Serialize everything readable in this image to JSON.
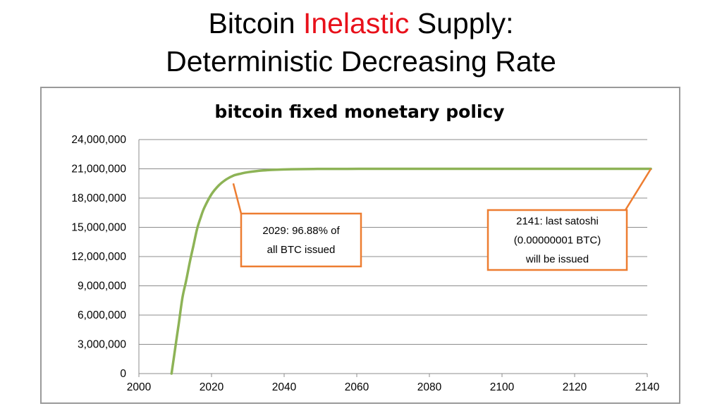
{
  "slide": {
    "title_line1_pre": "Bitcoin ",
    "title_line1_accent": "Inelastic",
    "title_line1_post": " Supply:",
    "title_line2": "Deterministic Decreasing Rate"
  },
  "colors": {
    "accent": "#e8101a",
    "series": "#8db356",
    "callout": "#ed7d31",
    "grid": "#8c8c8c"
  },
  "chart_data": {
    "type": "line",
    "title": "bitcoin fixed monetary policy",
    "xlabel": "",
    "ylabel": "",
    "xlim": [
      2000,
      2140
    ],
    "ylim": [
      0,
      24000000
    ],
    "x_ticks": [
      2000,
      2020,
      2040,
      2060,
      2080,
      2100,
      2120,
      2140
    ],
    "y_ticks": [
      0,
      3000000,
      6000000,
      9000000,
      12000000,
      15000000,
      18000000,
      21000000,
      24000000
    ],
    "y_tick_labels": [
      "0",
      "3,000,000",
      "6,000,000",
      "9,000,000",
      "12,000,000",
      "15,000,000",
      "18,000,000",
      "21,000,000",
      "24,000,000"
    ],
    "x_tick_labels": [
      "2000",
      "2020",
      "2040",
      "2060",
      "2080",
      "2100",
      "2120",
      "2140"
    ],
    "grid": "horizontal",
    "legend": "none",
    "series": [
      {
        "x": [
          2009,
          2010,
          2011,
          2012,
          2013,
          2014,
          2015,
          2016,
          2017,
          2018,
          2020,
          2022,
          2024,
          2026,
          2028,
          2030,
          2034,
          2038,
          2042,
          2048,
          2056,
          2070,
          2100,
          2141
        ],
        "values": [
          0,
          2600000,
          5200000,
          7800000,
          9500000,
          11400000,
          13100000,
          14800000,
          16000000,
          17000000,
          18400000,
          19300000,
          19900000,
          20300000,
          20500000,
          20650000,
          20830000,
          20910000,
          20955000,
          20985000,
          20995000,
          21000000,
          21000000,
          21000000
        ]
      }
    ],
    "annotations": [
      {
        "lines": [
          "2029: 96.88% of",
          "all BTC issued"
        ],
        "x": 2026,
        "y": 19500000
      },
      {
        "lines": [
          "2141: last satoshi",
          "(0.00000001 BTC)",
          "will be issued"
        ],
        "x": 2141,
        "y": 21000000
      }
    ]
  }
}
